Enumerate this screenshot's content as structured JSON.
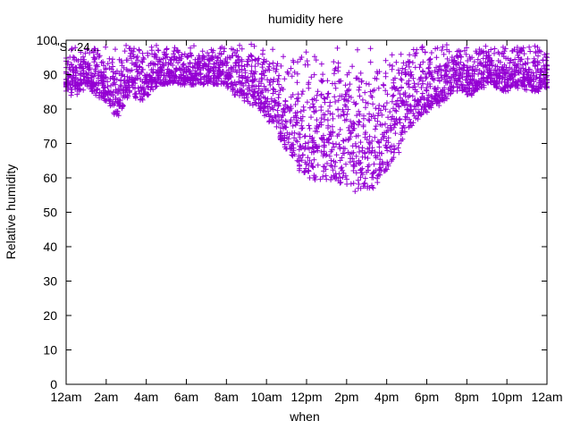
{
  "chart_data": {
    "type": "scatter",
    "title": "humidity here",
    "xlabel": "when",
    "ylabel": "Relative humidity",
    "xlim": [
      0,
      24
    ],
    "ylim": [
      0,
      100
    ],
    "y_ticks": [
      0,
      10,
      20,
      30,
      40,
      50,
      60,
      70,
      80,
      90,
      100
    ],
    "x_ticks": [
      {
        "hour": 0,
        "label": "12am"
      },
      {
        "hour": 2,
        "label": "2am"
      },
      {
        "hour": 4,
        "label": "4am"
      },
      {
        "hour": 6,
        "label": "6am"
      },
      {
        "hour": 8,
        "label": "8am"
      },
      {
        "hour": 10,
        "label": "10am"
      },
      {
        "hour": 12,
        "label": "12pm"
      },
      {
        "hour": 14,
        "label": "2pm"
      },
      {
        "hour": 16,
        "label": "4pm"
      },
      {
        "hour": 18,
        "label": "6pm"
      },
      {
        "hour": 20,
        "label": "8pm"
      },
      {
        "hour": 22,
        "label": "10pm"
      },
      {
        "hour": 24,
        "label": "12am"
      }
    ],
    "marker": "+",
    "grid": false,
    "legend_position": "top-right",
    "legend_text": "\"S...24...",
    "colors": {
      "series": "#9400d3",
      "axis": "#000000",
      "background": "#ffffff"
    },
    "series": [
      {
        "x": [
          0.0,
          0.25,
          0.5,
          0.75,
          1.0,
          1.25,
          1.5,
          1.75,
          2.0,
          2.25,
          2.5,
          2.75,
          3.0,
          3.25,
          3.5,
          3.75,
          4.0,
          4.25,
          4.5,
          4.75,
          5.0,
          5.25,
          5.5,
          5.75,
          6.0,
          6.25,
          6.5,
          6.75,
          7.0,
          7.25,
          7.5,
          7.75,
          8.0,
          8.25,
          8.5,
          8.75,
          9.0,
          9.25,
          9.5,
          9.75,
          10.0,
          10.25,
          10.5,
          10.75,
          11.0,
          11.25,
          11.5,
          11.75,
          12.0,
          12.25,
          12.5,
          12.75,
          13.0,
          13.25,
          13.5,
          13.75,
          14.0,
          14.25,
          14.5,
          14.75,
          15.0,
          15.25,
          15.5,
          15.75,
          16.0,
          16.25,
          16.5,
          16.75,
          17.0,
          17.25,
          17.5,
          17.75,
          18.0,
          18.25,
          18.5,
          18.75,
          19.0,
          19.25,
          19.5,
          19.75,
          20.0,
          20.25,
          20.5,
          20.75,
          21.0,
          21.25,
          21.5,
          21.75,
          22.0,
          22.25,
          22.5,
          22.75,
          23.0,
          23.25,
          23.5,
          23.75,
          24.0
        ],
        "y_min": [
          85,
          84,
          84,
          85,
          86,
          85,
          84,
          83,
          82,
          80,
          78,
          80,
          83,
          84,
          83,
          82,
          84,
          85,
          86,
          87,
          87,
          87,
          87,
          87,
          87,
          87,
          87,
          87,
          87,
          87,
          87,
          87,
          86,
          85,
          84,
          83,
          82,
          81,
          80,
          79,
          78,
          76,
          74,
          71,
          68,
          66,
          64,
          62,
          61,
          60,
          59,
          59,
          59,
          59,
          58,
          58,
          57,
          57,
          56,
          56,
          56,
          57,
          58,
          60,
          62,
          64,
          67,
          70,
          73,
          75,
          77,
          78,
          79,
          80,
          81,
          82,
          83,
          84,
          85,
          85,
          84,
          84,
          85,
          86,
          87,
          87,
          86,
          85,
          85,
          86,
          86,
          86,
          85,
          85,
          85,
          86,
          86
        ],
        "y_max": [
          99,
          99,
          99,
          99,
          99,
          99,
          99,
          99,
          99,
          99,
          99,
          99,
          99,
          99,
          99,
          99,
          99,
          99,
          99,
          99,
          99,
          99,
          99,
          99,
          99,
          99,
          99,
          99,
          99,
          99,
          99,
          99,
          99,
          99,
          99,
          99,
          99,
          99,
          99,
          99,
          99,
          99,
          99,
          99,
          99,
          99,
          99,
          99,
          99,
          99,
          99,
          99,
          99,
          99,
          99,
          99,
          99,
          99,
          99,
          99,
          99,
          99,
          99,
          99,
          99,
          99,
          99,
          99,
          99,
          99,
          99,
          99,
          99,
          99,
          99,
          99,
          99,
          99,
          99,
          99,
          99,
          99,
          99,
          99,
          99,
          99,
          99,
          99,
          99,
          99,
          99,
          99,
          99,
          99,
          99,
          99,
          99
        ],
        "samples_per_time": 28
      }
    ]
  }
}
